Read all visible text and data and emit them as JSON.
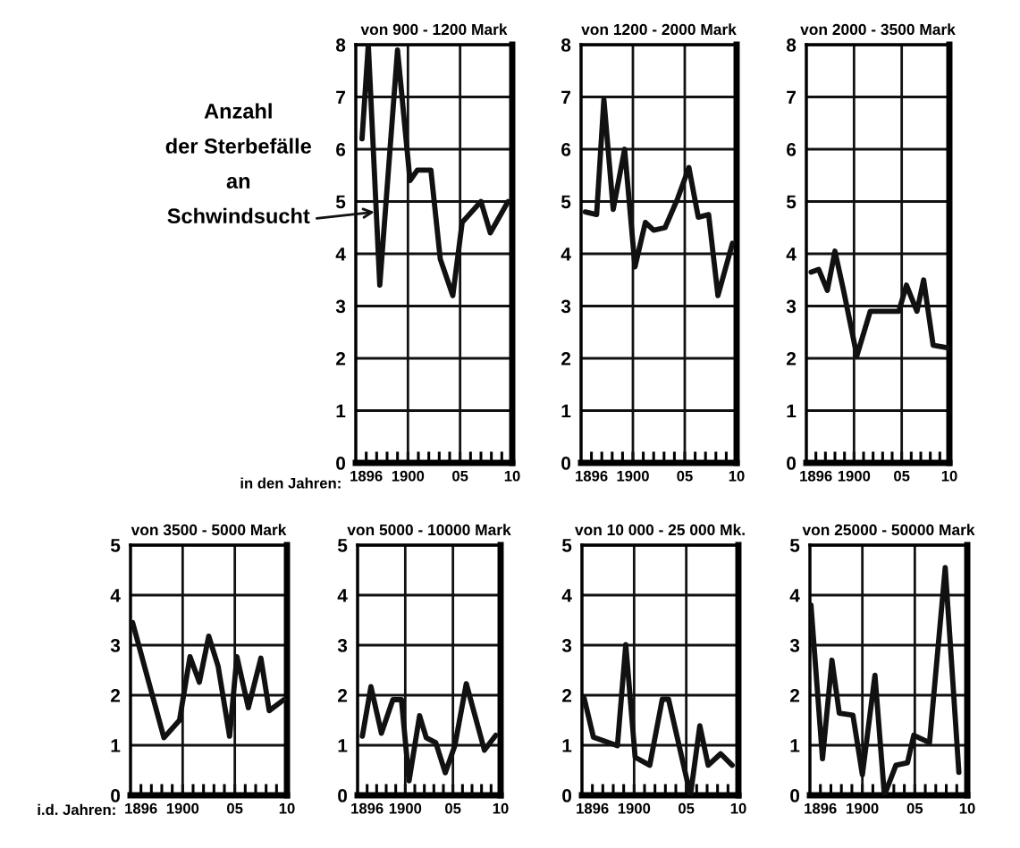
{
  "chart_data": [
    {
      "type": "line",
      "title": "von 900 - 1200 Mark",
      "xlabel": "in den Jahren:",
      "annotations": [
        {
          "text": "Anzahl\nder Sterbefälle\nan\nSchwindsucht",
          "x": 1896.8,
          "y": 4.8
        }
      ],
      "x": [
        1895.6,
        1896.2,
        1897.3,
        1899.0,
        1900.2,
        1900.9,
        1902.2,
        1903.1,
        1904.3,
        1905.2,
        1907.0,
        1907.9,
        1909.6
      ],
      "series": [
        {
          "color": "#111111",
          "values": [
            6.2,
            8.0,
            3.4,
            7.9,
            5.4,
            5.6,
            5.6,
            3.9,
            3.2,
            4.6,
            5.0,
            4.4,
            5.0
          ]
        }
      ],
      "xlim": [
        1895,
        1910
      ],
      "ylim": [
        0,
        8
      ],
      "xticks": [
        {
          "value": 1896,
          "label": "1896"
        },
        {
          "value": 1897,
          "label": null
        },
        {
          "value": 1898,
          "label": null
        },
        {
          "value": 1899,
          "label": null
        },
        {
          "value": 1900,
          "label": "1900"
        },
        {
          "value": 1901,
          "label": null
        },
        {
          "value": 1902,
          "label": null
        },
        {
          "value": 1903,
          "label": null
        },
        {
          "value": 1904,
          "label": null
        },
        {
          "value": 1905,
          "label": "05"
        },
        {
          "value": 1906,
          "label": null
        },
        {
          "value": 1907,
          "label": null
        },
        {
          "value": 1908,
          "label": null
        },
        {
          "value": 1909,
          "label": null
        },
        {
          "value": 1910,
          "label": "10"
        }
      ],
      "yticks": [
        0,
        1,
        2,
        3,
        4,
        5,
        6,
        7,
        8
      ],
      "grid": "y",
      "ref_lines": [
        {
          "axis": "x",
          "value": 1900
        },
        {
          "axis": "x",
          "value": 1905
        }
      ],
      "line_style": "solid"
    },
    {
      "type": "line",
      "title": "von 1200 - 2000 Mark",
      "x": [
        1895.4,
        1896.5,
        1897.2,
        1898.1,
        1899.2,
        1900.2,
        1901.2,
        1902.0,
        1903.1,
        1904.3,
        1905.4,
        1906.3,
        1907.3,
        1908.2,
        1909.6
      ],
      "series": [
        {
          "color": "#111111",
          "values": [
            4.8,
            4.75,
            6.95,
            4.85,
            6.0,
            3.75,
            4.6,
            4.45,
            4.5,
            5.05,
            5.65,
            4.7,
            4.75,
            3.2,
            4.2
          ]
        }
      ],
      "xlim": [
        1895,
        1910
      ],
      "ylim": [
        0,
        8
      ],
      "xticks": [
        {
          "value": 1896,
          "label": "1896"
        },
        {
          "value": 1897,
          "label": null
        },
        {
          "value": 1898,
          "label": null
        },
        {
          "value": 1899,
          "label": null
        },
        {
          "value": 1900,
          "label": "1900"
        },
        {
          "value": 1901,
          "label": null
        },
        {
          "value": 1902,
          "label": null
        },
        {
          "value": 1903,
          "label": null
        },
        {
          "value": 1904,
          "label": null
        },
        {
          "value": 1905,
          "label": "05"
        },
        {
          "value": 1906,
          "label": null
        },
        {
          "value": 1907,
          "label": null
        },
        {
          "value": 1908,
          "label": null
        },
        {
          "value": 1909,
          "label": null
        },
        {
          "value": 1910,
          "label": "10"
        }
      ],
      "yticks": [
        0,
        1,
        2,
        3,
        4,
        5,
        6,
        7,
        8
      ],
      "grid": "y",
      "ref_lines": [
        {
          "axis": "x",
          "value": 1900
        },
        {
          "axis": "x",
          "value": 1905
        }
      ],
      "line_style": "solid"
    },
    {
      "type": "line",
      "title": "von 2000 - 3500 Mark",
      "x": [
        1895.5,
        1896.3,
        1897.2,
        1898.0,
        1898.9,
        1900.3,
        1901.7,
        1904.7,
        1905.5,
        1906.6,
        1907.3,
        1908.3,
        1909.9
      ],
      "series": [
        {
          "color": "#111111",
          "values": [
            3.65,
            3.7,
            3.3,
            4.05,
            3.3,
            2.05,
            2.9,
            2.9,
            3.4,
            2.9,
            3.5,
            2.25,
            2.2
          ]
        }
      ],
      "xlim": [
        1895,
        1910
      ],
      "ylim": [
        0,
        8
      ],
      "xticks": [
        {
          "value": 1896,
          "label": "1896"
        },
        {
          "value": 1897,
          "label": null
        },
        {
          "value": 1898,
          "label": null
        },
        {
          "value": 1899,
          "label": null
        },
        {
          "value": 1900,
          "label": "1900"
        },
        {
          "value": 1901,
          "label": null
        },
        {
          "value": 1902,
          "label": null
        },
        {
          "value": 1903,
          "label": null
        },
        {
          "value": 1904,
          "label": null
        },
        {
          "value": 1905,
          "label": "05"
        },
        {
          "value": 1906,
          "label": null
        },
        {
          "value": 1907,
          "label": null
        },
        {
          "value": 1908,
          "label": null
        },
        {
          "value": 1909,
          "label": null
        },
        {
          "value": 1910,
          "label": "10"
        }
      ],
      "yticks": [
        0,
        1,
        2,
        3,
        4,
        5,
        6,
        7,
        8
      ],
      "grid": "y",
      "ref_lines": [
        {
          "axis": "x",
          "value": 1900
        },
        {
          "axis": "x",
          "value": 1905
        }
      ],
      "line_style": "solid"
    },
    {
      "type": "line",
      "title": "von 3500 - 5000 Mark",
      "xlabel": "i.d. Jahren:",
      "x": [
        1895.2,
        1898.2,
        1899.7,
        1900.7,
        1901.6,
        1902.5,
        1903.4,
        1904.5,
        1905.2,
        1906.3,
        1907.5,
        1908.3,
        1909.7
      ],
      "series": [
        {
          "color": "#111111",
          "values": [
            3.45,
            1.15,
            1.5,
            2.77,
            2.26,
            3.18,
            2.58,
            1.18,
            2.77,
            1.75,
            2.74,
            1.69,
            1.91
          ]
        }
      ],
      "xlim": [
        1895,
        1910
      ],
      "ylim": [
        0,
        5
      ],
      "xticks": [
        {
          "value": 1896,
          "label": "1896"
        },
        {
          "value": 1897,
          "label": null
        },
        {
          "value": 1898,
          "label": null
        },
        {
          "value": 1899,
          "label": null
        },
        {
          "value": 1900,
          "label": "1900"
        },
        {
          "value": 1901,
          "label": null
        },
        {
          "value": 1902,
          "label": null
        },
        {
          "value": 1903,
          "label": null
        },
        {
          "value": 1904,
          "label": null
        },
        {
          "value": 1905,
          "label": "05"
        },
        {
          "value": 1906,
          "label": null
        },
        {
          "value": 1907,
          "label": null
        },
        {
          "value": 1908,
          "label": null
        },
        {
          "value": 1909,
          "label": null
        },
        {
          "value": 1910,
          "label": "10"
        }
      ],
      "yticks": [
        0,
        1,
        2,
        3,
        4,
        5
      ],
      "grid": "y",
      "ref_lines": [
        {
          "axis": "x",
          "value": 1900
        },
        {
          "axis": "x",
          "value": 1905
        }
      ],
      "line_style": "solid"
    },
    {
      "type": "line",
      "title": "von 5000 - 10000 Mark",
      "x": [
        1895.5,
        1896.4,
        1897.5,
        1898.7,
        1899.6,
        1900.4,
        1901.5,
        1902.2,
        1903.2,
        1904.2,
        1905.2,
        1906.4,
        1908.3,
        1909.5
      ],
      "series": [
        {
          "color": "#111111",
          "values": [
            1.18,
            2.17,
            1.24,
            1.91,
            1.91,
            0.29,
            1.59,
            1.15,
            1.05,
            0.45,
            0.99,
            2.23,
            0.9,
            1.2
          ]
        }
      ],
      "xlim": [
        1895,
        1910
      ],
      "ylim": [
        0,
        5
      ],
      "xticks": [
        {
          "value": 1896,
          "label": "1896"
        },
        {
          "value": 1897,
          "label": null
        },
        {
          "value": 1898,
          "label": null
        },
        {
          "value": 1899,
          "label": null
        },
        {
          "value": 1900,
          "label": "1900"
        },
        {
          "value": 1901,
          "label": null
        },
        {
          "value": 1902,
          "label": null
        },
        {
          "value": 1903,
          "label": null
        },
        {
          "value": 1904,
          "label": null
        },
        {
          "value": 1905,
          "label": "05"
        },
        {
          "value": 1906,
          "label": null
        },
        {
          "value": 1907,
          "label": null
        },
        {
          "value": 1908,
          "label": null
        },
        {
          "value": 1909,
          "label": null
        },
        {
          "value": 1910,
          "label": "10"
        }
      ],
      "yticks": [
        0,
        1,
        2,
        3,
        4,
        5
      ],
      "grid": "y",
      "ref_lines": [
        {
          "axis": "x",
          "value": 1900
        },
        {
          "axis": "x",
          "value": 1905
        }
      ],
      "line_style": "solid"
    },
    {
      "type": "line",
      "title": "von 10 000 - 25 000 Mk.",
      "x": [
        1895.2,
        1896.1,
        1898.4,
        1899.2,
        1900.1,
        1901.5,
        1902.7,
        1903.3,
        1905.4,
        1906.3,
        1907.1,
        1908.3,
        1909.4
      ],
      "series": [
        {
          "color": "#111111",
          "values": [
            1.95,
            1.16,
            0.99,
            3.01,
            0.76,
            0.6,
            1.92,
            1.92,
            0,
            1.39,
            0.6,
            0.83,
            0.6
          ]
        }
      ],
      "xlim": [
        1895,
        1910
      ],
      "ylim": [
        0,
        5
      ],
      "xticks": [
        {
          "value": 1896,
          "label": "1896"
        },
        {
          "value": 1897,
          "label": null
        },
        {
          "value": 1898,
          "label": null
        },
        {
          "value": 1899,
          "label": null
        },
        {
          "value": 1900,
          "label": "1900"
        },
        {
          "value": 1901,
          "label": null
        },
        {
          "value": 1902,
          "label": null
        },
        {
          "value": 1903,
          "label": null
        },
        {
          "value": 1904,
          "label": null
        },
        {
          "value": 1905,
          "label": "05"
        },
        {
          "value": 1906,
          "label": null
        },
        {
          "value": 1907,
          "label": null
        },
        {
          "value": 1908,
          "label": null
        },
        {
          "value": 1909,
          "label": null
        },
        {
          "value": 1910,
          "label": "10"
        }
      ],
      "yticks": [
        0,
        1,
        2,
        3,
        4,
        5
      ],
      "grid": "y",
      "ref_lines": [
        {
          "axis": "x",
          "value": 1900
        },
        {
          "axis": "x",
          "value": 1905
        }
      ],
      "line_style": "solid"
    },
    {
      "type": "line",
      "title": "von 25000 - 50000 Mark",
      "x": [
        1895.1,
        1896.2,
        1897.1,
        1897.8,
        1899.1,
        1900.0,
        1901.2,
        1902.1,
        1903.2,
        1904.3,
        1904.9,
        1906.4,
        1907.9,
        1909.2
      ],
      "series": [
        {
          "color": "#111111",
          "values": [
            3.8,
            0.73,
            2.7,
            1.64,
            1.6,
            0.41,
            2.4,
            0,
            0.6,
            0.65,
            1.2,
            1.05,
            4.55,
            0.46
          ]
        }
      ],
      "xlim": [
        1895,
        1910
      ],
      "ylim": [
        0,
        5
      ],
      "xticks": [
        {
          "value": 1896,
          "label": "1896"
        },
        {
          "value": 1897,
          "label": null
        },
        {
          "value": 1898,
          "label": null
        },
        {
          "value": 1899,
          "label": null
        },
        {
          "value": 1900,
          "label": "1900"
        },
        {
          "value": 1901,
          "label": null
        },
        {
          "value": 1902,
          "label": null
        },
        {
          "value": 1903,
          "label": null
        },
        {
          "value": 1904,
          "label": null
        },
        {
          "value": 1905,
          "label": "05"
        },
        {
          "value": 1906,
          "label": null
        },
        {
          "value": 1907,
          "label": null
        },
        {
          "value": 1908,
          "label": null
        },
        {
          "value": 1909,
          "label": null
        },
        {
          "value": 1910,
          "label": "10"
        }
      ],
      "yticks": [
        0,
        1,
        2,
        3,
        4,
        5
      ],
      "grid": "y",
      "ref_lines": [
        {
          "axis": "x",
          "value": 1900
        },
        {
          "axis": "x",
          "value": 1905
        }
      ],
      "line_style": "solid"
    }
  ]
}
